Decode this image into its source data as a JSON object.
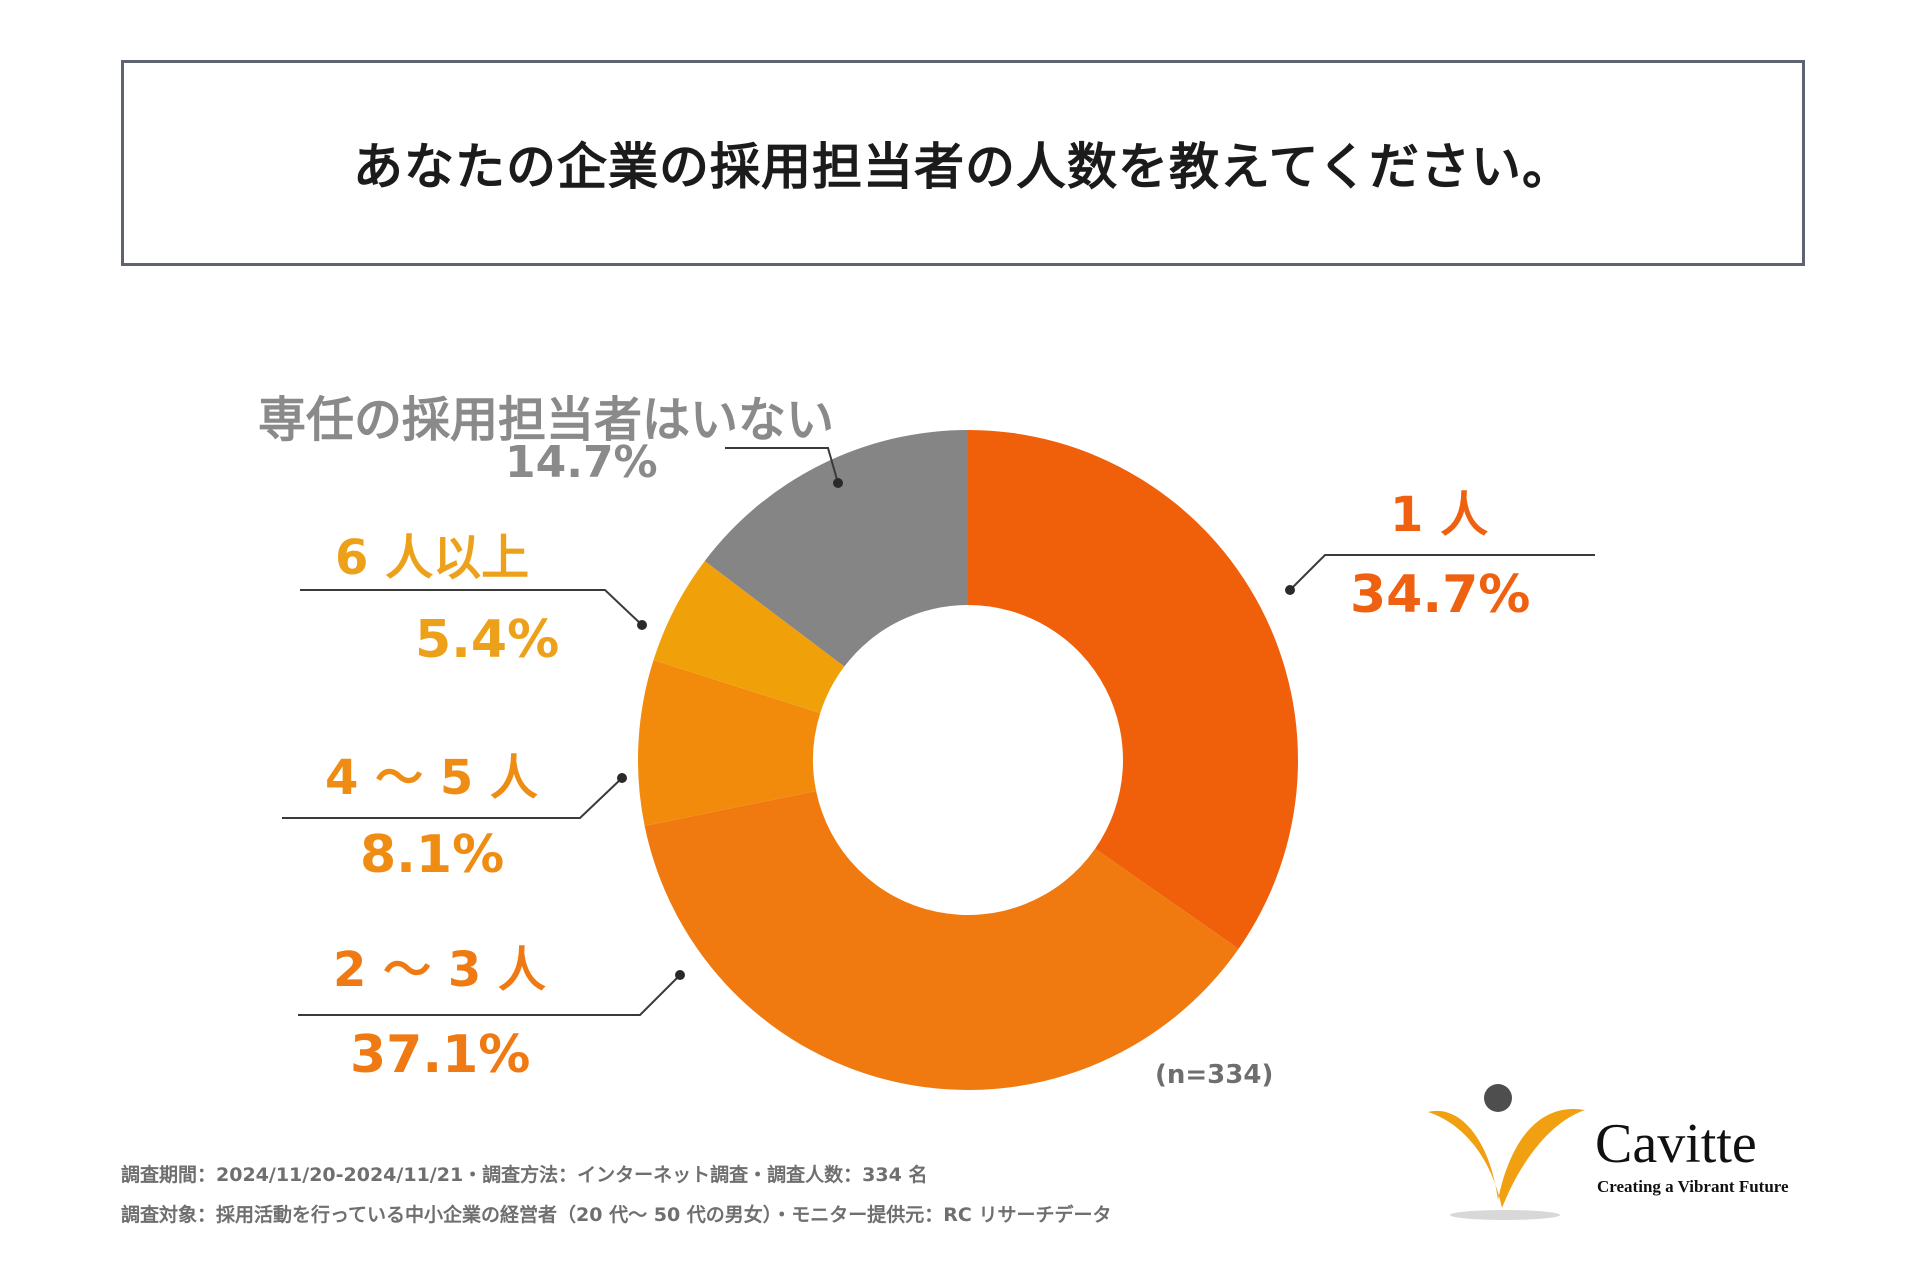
{
  "title": "あなたの企業の採用担当者の人数を教えてください。",
  "chart_data": {
    "type": "pie",
    "variant": "donut",
    "title": "あなたの企業の採用担当者の人数を教えてください。",
    "categories": [
      "1 人",
      "2 ～ 3 人",
      "4 ～ 5 人",
      "6 人以上",
      "専任の採用担当者はいない"
    ],
    "values": [
      34.7,
      37.1,
      8.1,
      5.4,
      14.7
    ],
    "value_labels": [
      "34.7%",
      "37.1%",
      "8.1%",
      "5.4%",
      "14.7%"
    ],
    "colors": [
      "#f0600a",
      "#f07a10",
      "#f28b0c",
      "#f0a10a",
      "#858585"
    ],
    "label_colors": [
      "#ef6110",
      "#ef7a14",
      "#ef8c14",
      "#eda11a",
      "#8a8a8a"
    ],
    "sample": "(n=334)"
  },
  "footnotes": [
    "調査期間：2024/11/20-2024/11/21・調査方法：インターネット調査・調査人数：334 名",
    "調査対象：採用活動を行っている中小企業の経営者（20 代～ 50 代の男女）・モニター提供元：RC リサーチデータ"
  ],
  "logo": {
    "name": "Cavitte",
    "tagline": "Creating a Vibrant Future"
  }
}
